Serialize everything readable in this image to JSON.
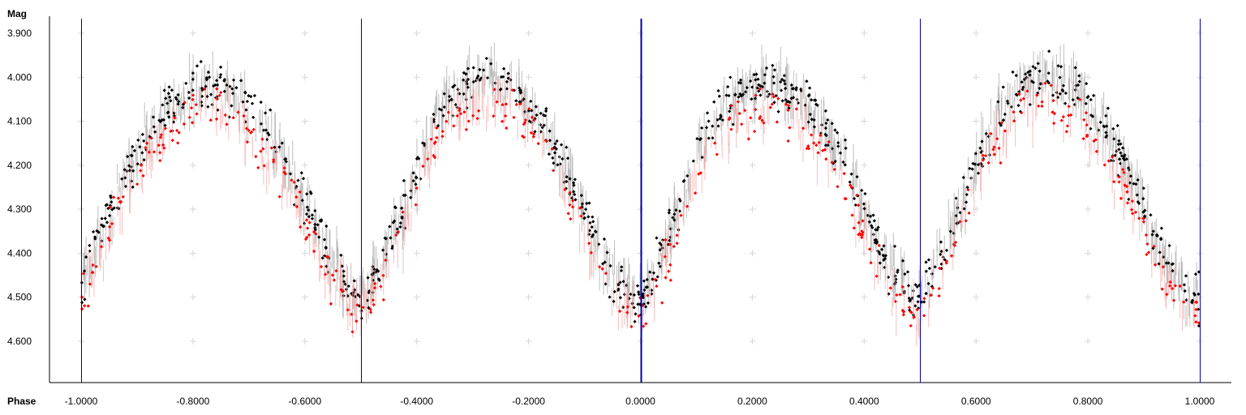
{
  "chart_data": {
    "type": "scatter",
    "title": "",
    "xlabel": "Phase",
    "ylabel": "Mag",
    "xlim": [
      -1.06,
      1.07
    ],
    "ylim": [
      3.862,
      4.695
    ],
    "y_inverted": true,
    "grid": "cross markers",
    "legend": "none",
    "x_ticks": [
      -1.0,
      -0.8,
      -0.6,
      -0.4,
      -0.2,
      0.0,
      0.2,
      0.4,
      0.6,
      0.8,
      1.0
    ],
    "x_tick_labels": [
      "-1.0000",
      "-0.8000",
      "-0.6000",
      "-0.4000",
      "-0.2000",
      "0.0000",
      "0.2000",
      "0.4000",
      "0.6000",
      "0.8000",
      "1.0000"
    ],
    "y_ticks": [
      3.9,
      4.0,
      4.1,
      4.2,
      4.3,
      4.4,
      4.5,
      4.6
    ],
    "y_tick_labels": [
      "3.900",
      "4.000",
      "4.100",
      "4.200",
      "4.300",
      "4.400",
      "4.500",
      "4.600"
    ],
    "vertical_lines": [
      -1.0,
      -0.5,
      0.0,
      0.5,
      1.0
    ],
    "light_curve_model": {
      "period_in_phase": 0.5,
      "description": "double-wave light curve, minima near phase -1.0, -0.5, 0.0, 0.5, 1.0",
      "black_series": {
        "minimum_mag": 4.5,
        "maximum_mag_first_half": 4.04,
        "maximum_mag_second_half": 4.01
      },
      "red_series": {
        "minimum_mag": 4.54,
        "maximum_mag_first_half": 4.09,
        "maximum_mag_second_half": 4.06
      },
      "error_bar_half_width_mag": 0.03
    },
    "series": [
      {
        "color": "#000000",
        "error_bar_color": "#aaaaaa",
        "values": [
          [
            -1.0,
            4.47
          ],
          [
            -0.98,
            4.4
          ],
          [
            -0.95,
            4.3
          ],
          [
            -0.92,
            4.22
          ],
          [
            -0.9,
            4.17
          ],
          [
            -0.87,
            4.12
          ],
          [
            -0.85,
            4.08
          ],
          [
            -0.82,
            4.05
          ],
          [
            -0.8,
            4.03
          ],
          [
            -0.77,
            4.02
          ],
          [
            -0.75,
            4.02
          ],
          [
            -0.72,
            4.04
          ],
          [
            -0.7,
            4.07
          ],
          [
            -0.67,
            4.11
          ],
          [
            -0.65,
            4.16
          ],
          [
            -0.62,
            4.22
          ],
          [
            -0.6,
            4.28
          ],
          [
            -0.57,
            4.36
          ],
          [
            -0.55,
            4.42
          ],
          [
            -0.52,
            4.48
          ],
          [
            -0.5,
            4.5
          ],
          [
            -0.48,
            4.46
          ],
          [
            -0.45,
            4.38
          ],
          [
            -0.42,
            4.28
          ],
          [
            -0.4,
            4.2
          ],
          [
            -0.37,
            4.11
          ],
          [
            -0.35,
            4.06
          ],
          [
            -0.32,
            4.02
          ],
          [
            -0.3,
            4.0
          ],
          [
            -0.27,
            4.0
          ],
          [
            -0.25,
            4.01
          ],
          [
            -0.22,
            4.03
          ],
          [
            -0.2,
            4.06
          ],
          [
            -0.17,
            4.11
          ],
          [
            -0.15,
            4.17
          ],
          [
            -0.12,
            4.25
          ],
          [
            -0.1,
            4.31
          ],
          [
            -0.07,
            4.4
          ],
          [
            -0.05,
            4.45
          ],
          [
            -0.02,
            4.49
          ],
          [
            0.0,
            4.5
          ],
          [
            0.02,
            4.45
          ],
          [
            0.05,
            4.36
          ],
          [
            0.08,
            4.26
          ],
          [
            0.1,
            4.18
          ],
          [
            0.12,
            4.12
          ],
          [
            0.15,
            4.07
          ],
          [
            0.18,
            4.04
          ],
          [
            0.2,
            4.03
          ],
          [
            0.22,
            4.02
          ],
          [
            0.25,
            4.02
          ],
          [
            0.28,
            4.04
          ],
          [
            0.3,
            4.07
          ],
          [
            0.32,
            4.1
          ],
          [
            0.35,
            4.16
          ],
          [
            0.38,
            4.24
          ],
          [
            0.4,
            4.3
          ],
          [
            0.42,
            4.37
          ],
          [
            0.45,
            4.44
          ],
          [
            0.48,
            4.49
          ],
          [
            0.5,
            4.5
          ],
          [
            0.52,
            4.45
          ],
          [
            0.55,
            4.37
          ],
          [
            0.58,
            4.27
          ],
          [
            0.6,
            4.2
          ],
          [
            0.62,
            4.13
          ],
          [
            0.65,
            4.07
          ],
          [
            0.68,
            4.03
          ],
          [
            0.7,
            4.01
          ],
          [
            0.72,
            4.0
          ],
          [
            0.75,
            4.01
          ],
          [
            0.78,
            4.03
          ],
          [
            0.8,
            4.06
          ],
          [
            0.82,
            4.1
          ],
          [
            0.85,
            4.16
          ],
          [
            0.88,
            4.24
          ],
          [
            0.9,
            4.3
          ],
          [
            0.92,
            4.37
          ],
          [
            0.95,
            4.44
          ],
          [
            0.98,
            4.49
          ],
          [
            1.0,
            4.5
          ]
        ]
      },
      {
        "color": "#ff0000",
        "error_bar_color": "#f2aaaa",
        "values": [
          [
            -1.0,
            4.5
          ],
          [
            -0.97,
            4.42
          ],
          [
            -0.95,
            4.35
          ],
          [
            -0.92,
            4.27
          ],
          [
            -0.9,
            4.21
          ],
          [
            -0.87,
            4.16
          ],
          [
            -0.85,
            4.13
          ],
          [
            -0.82,
            4.1
          ],
          [
            -0.8,
            4.09
          ],
          [
            -0.77,
            4.08
          ],
          [
            -0.75,
            4.08
          ],
          [
            -0.72,
            4.1
          ],
          [
            -0.7,
            4.13
          ],
          [
            -0.67,
            4.17
          ],
          [
            -0.65,
            4.21
          ],
          [
            -0.62,
            4.27
          ],
          [
            -0.6,
            4.33
          ],
          [
            -0.57,
            4.41
          ],
          [
            -0.55,
            4.47
          ],
          [
            -0.52,
            4.52
          ],
          [
            -0.5,
            4.54
          ],
          [
            -0.47,
            4.48
          ],
          [
            -0.45,
            4.42
          ],
          [
            -0.42,
            4.33
          ],
          [
            -0.4,
            4.25
          ],
          [
            -0.37,
            4.17
          ],
          [
            -0.35,
            4.12
          ],
          [
            -0.32,
            4.08
          ],
          [
            -0.3,
            4.06
          ],
          [
            -0.27,
            4.05
          ],
          [
            -0.25,
            4.06
          ],
          [
            -0.22,
            4.08
          ],
          [
            -0.2,
            4.11
          ],
          [
            -0.17,
            4.16
          ],
          [
            -0.15,
            4.22
          ],
          [
            -0.12,
            4.3
          ],
          [
            -0.1,
            4.36
          ],
          [
            -0.07,
            4.44
          ],
          [
            -0.05,
            4.49
          ],
          [
            -0.02,
            4.53
          ],
          [
            0.0,
            4.54
          ],
          [
            0.03,
            4.48
          ],
          [
            0.05,
            4.41
          ],
          [
            0.08,
            4.31
          ],
          [
            0.1,
            4.23
          ],
          [
            0.12,
            4.17
          ],
          [
            0.15,
            4.12
          ],
          [
            0.18,
            4.09
          ],
          [
            0.2,
            4.08
          ],
          [
            0.22,
            4.08
          ],
          [
            0.25,
            4.08
          ],
          [
            0.28,
            4.1
          ],
          [
            0.3,
            4.13
          ],
          [
            0.32,
            4.16
          ],
          [
            0.35,
            4.22
          ],
          [
            0.38,
            4.29
          ],
          [
            0.4,
            4.35
          ],
          [
            0.42,
            4.42
          ],
          [
            0.45,
            4.48
          ],
          [
            0.48,
            4.53
          ],
          [
            0.5,
            4.54
          ],
          [
            0.52,
            4.49
          ],
          [
            0.55,
            4.41
          ],
          [
            0.58,
            4.32
          ],
          [
            0.6,
            4.25
          ],
          [
            0.62,
            4.18
          ],
          [
            0.65,
            4.12
          ],
          [
            0.68,
            4.08
          ],
          [
            0.7,
            4.06
          ],
          [
            0.72,
            4.06
          ],
          [
            0.75,
            4.07
          ],
          [
            0.78,
            4.09
          ],
          [
            0.8,
            4.12
          ],
          [
            0.82,
            4.16
          ],
          [
            0.85,
            4.22
          ],
          [
            0.88,
            4.29
          ],
          [
            0.9,
            4.35
          ],
          [
            0.92,
            4.42
          ],
          [
            0.95,
            4.48
          ],
          [
            0.98,
            4.53
          ],
          [
            1.0,
            4.54
          ]
        ]
      }
    ]
  }
}
